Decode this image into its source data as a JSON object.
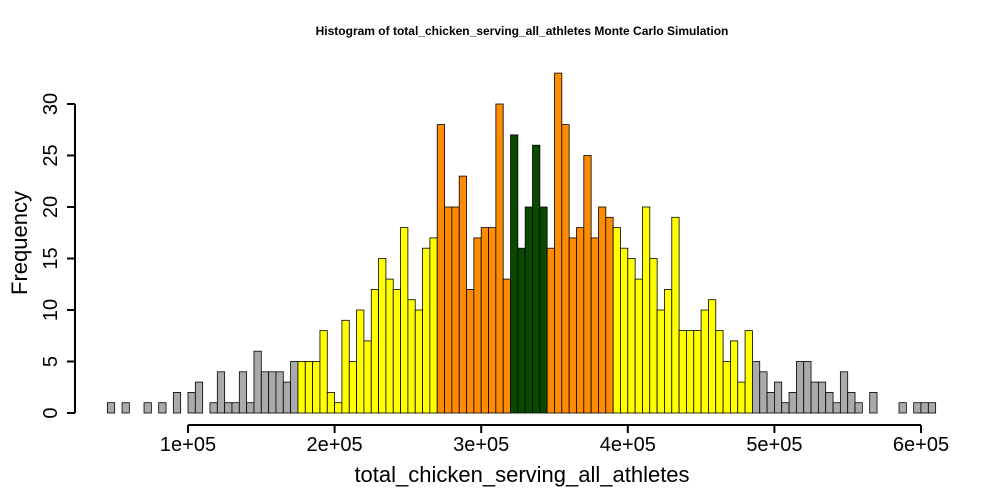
{
  "chart_data": {
    "type": "bar",
    "title": "Histogram of  total_chicken_serving_all_athletes  Monte Carlo Simulation",
    "xlabel": "total_chicken_serving_all_athletes",
    "ylabel": "Frequency",
    "bin_width": 5000,
    "bin_start": 45000,
    "bin_starts": [
      45000,
      50000,
      55000,
      60000,
      65000,
      70000,
      75000,
      80000,
      85000,
      90000,
      95000,
      100000,
      105000,
      110000,
      115000,
      120000,
      125000,
      130000,
      135000,
      140000,
      145000,
      150000,
      155000,
      160000,
      165000,
      170000,
      175000,
      180000,
      185000,
      190000,
      195000,
      200000,
      205000,
      210000,
      215000,
      220000,
      225000,
      230000,
      235000,
      240000,
      245000,
      250000,
      255000,
      260000,
      265000,
      270000,
      275000,
      280000,
      285000,
      290000,
      295000,
      300000,
      305000,
      310000,
      315000,
      320000,
      325000,
      330000,
      335000,
      340000,
      345000,
      350000,
      355000,
      360000,
      365000,
      370000,
      375000,
      380000,
      385000,
      390000,
      395000,
      400000,
      405000,
      410000,
      415000,
      420000,
      425000,
      430000,
      435000,
      440000,
      445000,
      450000,
      455000,
      460000,
      465000,
      470000,
      475000,
      480000,
      485000,
      490000,
      495000,
      500000,
      505000,
      510000,
      515000,
      520000,
      525000,
      530000,
      535000,
      540000,
      545000,
      550000,
      555000,
      560000,
      565000,
      570000,
      575000,
      580000,
      585000,
      590000,
      595000,
      600000,
      605000
    ],
    "values": [
      1,
      0,
      1,
      0,
      0,
      1,
      0,
      1,
      0,
      2,
      0,
      2,
      3,
      0,
      1,
      4,
      1,
      1,
      4,
      1,
      6,
      4,
      4,
      4,
      3,
      5,
      5,
      5,
      5,
      8,
      2,
      1,
      9,
      5,
      10,
      7,
      12,
      15,
      13,
      12,
      18,
      11,
      10,
      16,
      17,
      28,
      20,
      20,
      23,
      12,
      17,
      18,
      18,
      30,
      13,
      27,
      16,
      20,
      26,
      20,
      16,
      33,
      28,
      17,
      18,
      25,
      17,
      20,
      19,
      18,
      16,
      15,
      13,
      20,
      15,
      10,
      12,
      19,
      8,
      8,
      8,
      10,
      11,
      8,
      5,
      7,
      3,
      8,
      5,
      4,
      2,
      3,
      1,
      2,
      5,
      5,
      3,
      3,
      2,
      1,
      4,
      2,
      1,
      0,
      2,
      0,
      0,
      0,
      1,
      0,
      1,
      1,
      1
    ],
    "bar_colors": {
      "tail": "#aaaaaa",
      "outer": "#ffff00",
      "inner": "#ff8c00",
      "center": "#0a4a00"
    },
    "color_bands": [
      {
        "from": 45000,
        "to": 175000,
        "color": "tail"
      },
      {
        "from": 175000,
        "to": 270000,
        "color": "outer"
      },
      {
        "from": 270000,
        "to": 320000,
        "color": "inner"
      },
      {
        "from": 320000,
        "to": 345000,
        "color": "center"
      },
      {
        "from": 345000,
        "to": 390000,
        "color": "inner"
      },
      {
        "from": 390000,
        "to": 485000,
        "color": "outer"
      },
      {
        "from": 485000,
        "to": 610000,
        "color": "tail"
      }
    ],
    "xlim": [
      45000,
      610000
    ],
    "ylim": [
      0,
      33
    ],
    "x_ticks": [
      100000,
      200000,
      300000,
      400000,
      500000,
      600000
    ],
    "x_tick_labels": [
      "1e+05",
      "2e+05",
      "3e+05",
      "4e+05",
      "5e+05",
      "6e+05"
    ],
    "y_ticks": [
      0,
      5,
      10,
      15,
      20,
      25,
      30
    ],
    "y_tick_labels": [
      "0",
      "5",
      "10",
      "15",
      "20",
      "25",
      "30"
    ],
    "grid": false,
    "legend": "none"
  }
}
